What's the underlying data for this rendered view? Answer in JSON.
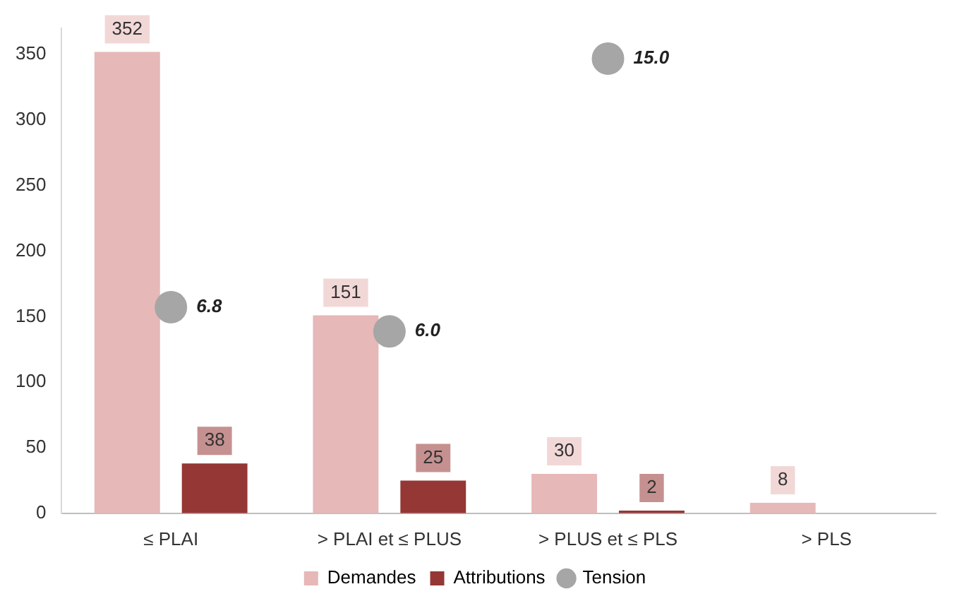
{
  "chart_data": {
    "type": "bar",
    "categories": [
      "≤ PLAI",
      "> PLAI et ≤ PLUS",
      "> PLUS et ≤ PLS",
      "> PLS"
    ],
    "series": [
      {
        "name": "Demandes",
        "color": "#e6b8b7",
        "values": [
          352,
          151,
          30,
          8
        ]
      },
      {
        "name": "Attributions",
        "color": "#953735",
        "values": [
          38,
          25,
          2,
          null
        ]
      },
      {
        "name": "Tension",
        "type": "scatter",
        "axis": "y2",
        "color": "#a6a6a6",
        "values": [
          6.8,
          6.0,
          15.0,
          null
        ],
        "value_labels": [
          "6.8",
          "6.0",
          "15.0",
          null
        ]
      }
    ],
    "ylim": [
      0,
      370
    ],
    "yticks": [
      0,
      50,
      100,
      150,
      200,
      250,
      300,
      350
    ],
    "data_labels": true,
    "legend": "bottom",
    "marker": "circle",
    "grid": false
  }
}
